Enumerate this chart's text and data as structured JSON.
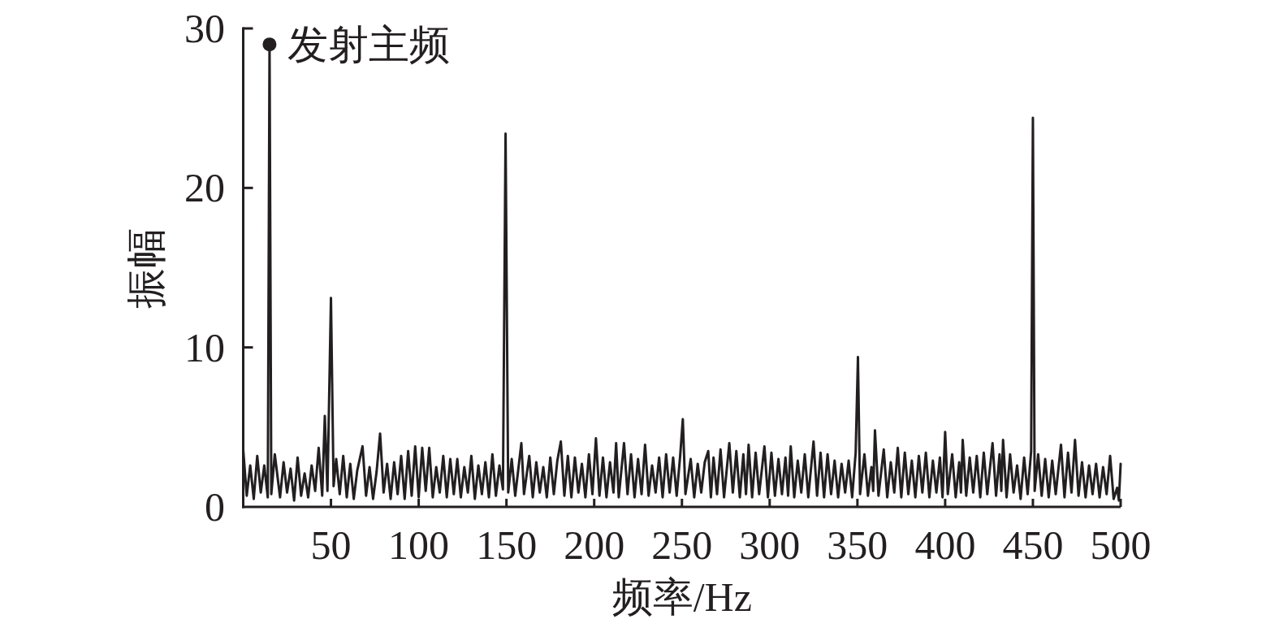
{
  "chart_data": {
    "type": "line",
    "xlabel": "频率/Hz",
    "ylabel": "振幅",
    "x": [
      0,
      2,
      4,
      6,
      8,
      10,
      12,
      14,
      15,
      16,
      18,
      21,
      23,
      25,
      27,
      29,
      31,
      33,
      35,
      37,
      39,
      41,
      43,
      45,
      46.5,
      48,
      50,
      51.5,
      53,
      55,
      57,
      59,
      61,
      63,
      65,
      68,
      70,
      72,
      74,
      76,
      78,
      80,
      82,
      84,
      86,
      88,
      90,
      92,
      94,
      96,
      98,
      100,
      102,
      104,
      106,
      108,
      110,
      112,
      114,
      116,
      118,
      120,
      122,
      124,
      126,
      128,
      130,
      132,
      134,
      136,
      138,
      140,
      142,
      144,
      146,
      148,
      149.5,
      151,
      153,
      155,
      158.5,
      160,
      163,
      165,
      167,
      169,
      171,
      173,
      175,
      177,
      179,
      181,
      183,
      185,
      187,
      189,
      191,
      193,
      195,
      197,
      199,
      201,
      203,
      205,
      207,
      209,
      211,
      212.5,
      214,
      217,
      219,
      221,
      223,
      225,
      227,
      229,
      231,
      233,
      235,
      237,
      239,
      241,
      243,
      245,
      247,
      249,
      250.5,
      252,
      255,
      257,
      259,
      261,
      263,
      265,
      266.5,
      268,
      270,
      272,
      274,
      277,
      279,
      281,
      283,
      285,
      286.5,
      288,
      290,
      292,
      294,
      297,
      299,
      301,
      303,
      305,
      307,
      309,
      310.5,
      312,
      314,
      316,
      318,
      320,
      322,
      325,
      327,
      329,
      331,
      333,
      335,
      337,
      339,
      341,
      343,
      345,
      347,
      349,
      350.3,
      351.5,
      354,
      356,
      358,
      359,
      360,
      362,
      365,
      367,
      369,
      371,
      373,
      375,
      377,
      379,
      381,
      383,
      385,
      387,
      389,
      391,
      393,
      395,
      397,
      398.5,
      400,
      401.5,
      404,
      406,
      408,
      409,
      410,
      412,
      414,
      416,
      418,
      420,
      422,
      424,
      427,
      429,
      431,
      432,
      433,
      435,
      437,
      439,
      441,
      443,
      445,
      447,
      449,
      450,
      451,
      453,
      455,
      457,
      459,
      461,
      463,
      466,
      468,
      470,
      472,
      474,
      476,
      478,
      480,
      482,
      484,
      486,
      488,
      490,
      492,
      494,
      496,
      498,
      499,
      500
    ],
    "series": [
      {
        "color": "#231f20",
        "values": [
          3.6,
          0.7,
          2.6,
          0.5,
          3.2,
          0.9,
          2.6,
          0.6,
          29,
          0.8,
          3.3,
          0.6,
          2.8,
          0.9,
          2.4,
          0.4,
          3.1,
          0.7,
          2.1,
          0.6,
          2.6,
          1.0,
          3.7,
          0.7,
          5.7,
          1.0,
          13.1,
          1.3,
          3.0,
          0.8,
          3.2,
          0.6,
          2.7,
          0.5,
          2.3,
          3.8,
          0.7,
          2.5,
          0.5,
          2.2,
          4.6,
          0.9,
          2.7,
          0.5,
          2.8,
          0.8,
          3.2,
          0.5,
          3.5,
          0.7,
          3.8,
          0.6,
          3.7,
          1.0,
          3.7,
          0.6,
          2.5,
          0.9,
          3.2,
          0.6,
          3.0,
          0.8,
          3.0,
          0.6,
          2.5,
          0.9,
          3.2,
          0.5,
          2.6,
          0.8,
          2.8,
          0.6,
          3.3,
          0.7,
          2.6,
          1.1,
          23.4,
          0.9,
          3.0,
          0.7,
          4.0,
          0.8,
          3.2,
          0.6,
          2.8,
          0.9,
          2.5,
          0.6,
          3.1,
          0.8,
          2.9,
          4.1,
          0.7,
          3.2,
          0.6,
          3.1,
          0.9,
          2.7,
          0.6,
          3.3,
          0.8,
          4.3,
          0.7,
          3.1,
          0.6,
          2.8,
          0.9,
          4.0,
          0.6,
          4.0,
          0.8,
          3.3,
          0.6,
          3.0,
          0.8,
          3.9,
          0.7,
          2.6,
          0.9,
          3.1,
          0.6,
          3.3,
          0.9,
          3.1,
          0.7,
          3.2,
          5.5,
          0.8,
          3.0,
          0.6,
          2.7,
          0.9,
          2.8,
          3.5,
          0.6,
          3.1,
          0.8,
          3.6,
          0.6,
          4.0,
          0.9,
          3.5,
          0.6,
          3.3,
          0.8,
          3.9,
          0.6,
          3.4,
          0.8,
          3.8,
          0.6,
          3.4,
          0.7,
          3.0,
          0.8,
          3.1,
          0.7,
          3.8,
          0.6,
          2.9,
          0.9,
          3.3,
          0.6,
          4.1,
          0.7,
          3.4,
          0.6,
          3.3,
          0.8,
          2.9,
          0.6,
          2.7,
          0.9,
          2.9,
          0.6,
          3.4,
          9.4,
          0.8,
          3.3,
          0.7,
          2.5,
          1.0,
          4.8,
          0.7,
          3.6,
          0.6,
          2.8,
          0.9,
          3.7,
          0.6,
          3.4,
          0.8,
          2.9,
          0.6,
          3.2,
          0.9,
          3.4,
          0.6,
          2.9,
          0.9,
          3.1,
          0.6,
          4.7,
          0.8,
          3.3,
          0.6,
          2.8,
          0.9,
          4.2,
          0.7,
          3.1,
          0.9,
          3.2,
          0.6,
          3.4,
          0.8,
          4.0,
          0.7,
          3.3,
          1.0,
          4.2,
          0.6,
          3.3,
          0.9,
          2.6,
          0.5,
          3.1,
          0.8,
          3.5,
          24.4,
          1.0,
          3.3,
          0.7,
          3.0,
          0.6,
          2.9,
          0.8,
          3.9,
          0.6,
          3.4,
          0.9,
          4.2,
          0.7,
          2.8,
          0.6,
          2.6,
          0.8,
          2.7,
          0.6,
          2.5,
          0.8,
          3.2,
          0.5,
          1.2,
          0.4,
          2.7
        ]
      }
    ],
    "xlim": [
      0,
      500
    ],
    "ylim": [
      0,
      30
    ],
    "xticks": [
      50,
      100,
      150,
      200,
      250,
      300,
      350,
      400,
      450,
      500
    ],
    "yticks": [
      0,
      10,
      20,
      30
    ],
    "annotations": [
      {
        "text": "发射主频",
        "x": 15,
        "y": 29
      }
    ]
  }
}
